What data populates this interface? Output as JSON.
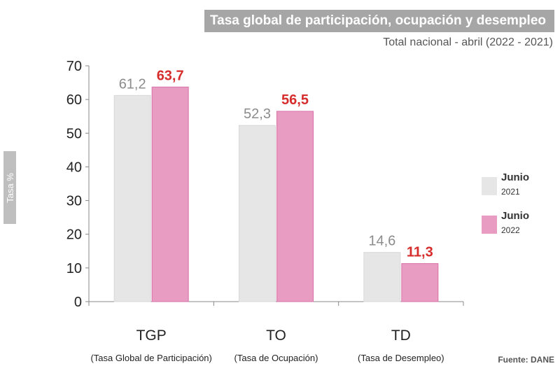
{
  "title": "Tasa global de participación, ocupación y desempleo",
  "subtitle": "Total nacional - abril (2022 - 2021)",
  "source": "Fuente: DANE",
  "colors": {
    "series_2021": "#e6e6e6",
    "series_2022": "#e89cc2",
    "label_2021": "#8c8c8c",
    "label_2022": "#d62c2c"
  },
  "legend": [
    {
      "line1": "Junio",
      "line2": "2021"
    },
    {
      "line1": "Junio",
      "line2": "2022"
    }
  ],
  "chart_data": {
    "type": "bar",
    "categories": [
      "TGP",
      "TO",
      "TD"
    ],
    "category_sublabels": [
      "(Tasa Global de Participación)",
      "(Tasa de Ocupación)",
      "(Tasa de Desempleo)"
    ],
    "series": [
      {
        "name": "Junio 2021",
        "values": [
          61.2,
          52.3,
          14.6
        ],
        "labels": [
          "61,2",
          "52,3",
          "14,6"
        ]
      },
      {
        "name": "Junio 2022",
        "values": [
          63.7,
          56.5,
          11.3
        ],
        "labels": [
          "63,7",
          "56,5",
          "11,3"
        ]
      }
    ],
    "ylabel": "Tasa %",
    "ylim": [
      0,
      70
    ],
    "yticks": [
      0,
      10,
      20,
      30,
      40,
      50,
      60,
      70
    ],
    "legend_position": "right"
  }
}
